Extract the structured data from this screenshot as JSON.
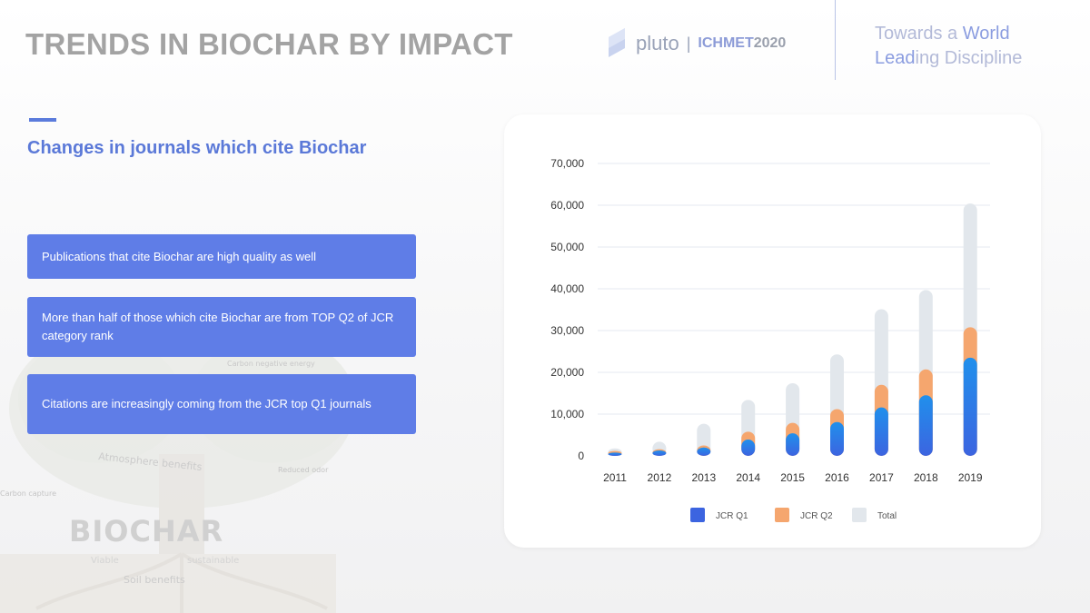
{
  "header": {
    "title": "TRENDS IN BIOCHAR BY IMPACT",
    "brand_pluto": "pluto",
    "brand_separator": "|",
    "brand_event": "ICHMET",
    "brand_year": "2020",
    "tagline_line1_prefix": "Towards a ",
    "tagline_line1_accent": "World",
    "tagline_line2_accent": "Lead",
    "tagline_line2_rest": "ing Discipline"
  },
  "section": {
    "subtitle": "Changes in journals which cite Biochar"
  },
  "bullets": [
    "Publications that cite Biochar are high quality as well",
    "More than half of those which cite Biochar are from TOP Q2 of JCR category rank",
    "Citations are increasingly coming from the JCR top Q1 journals"
  ],
  "watermark": {
    "word": "BIOCHAR",
    "labels": [
      "Carbon negative energy",
      "Atmosphere benefits",
      "Reduced odor",
      "Carbon capture",
      "Soil benefits",
      "Viable",
      "sustainable"
    ]
  },
  "colors": {
    "q1": "#3c64e0",
    "q1_gradient_end": "#2090ec",
    "q2": "#f5a66e",
    "total": "#e2e7ec",
    "accent": "#5b7bdc"
  },
  "chart_data": {
    "type": "bar",
    "categories": [
      "2011",
      "2012",
      "2013",
      "2014",
      "2015",
      "2016",
      "2017",
      "2018",
      "2019"
    ],
    "series": [
      {
        "name": "JCR Q1",
        "values": [
          800,
          1300,
          2000,
          3900,
          5400,
          8100,
          11600,
          14500,
          23500
        ]
      },
      {
        "name": "JCR Q2",
        "values": [
          1200,
          1600,
          2500,
          5800,
          7900,
          11200,
          17000,
          20700,
          30800
        ]
      },
      {
        "name": "Total",
        "values": [
          1800,
          3400,
          7700,
          13400,
          17400,
          24300,
          35100,
          39700,
          60400
        ]
      }
    ],
    "ylim": [
      0,
      70000
    ],
    "yticks": [
      "0",
      "10,000",
      "20,000",
      "30,000",
      "40,000",
      "50,000",
      "60,000",
      "70,000"
    ],
    "ytick_values": [
      0,
      10000,
      20000,
      30000,
      40000,
      50000,
      60000,
      70000
    ],
    "grid": true,
    "legend_placement": "bottom",
    "title": "",
    "xlabel": "",
    "ylabel": ""
  }
}
